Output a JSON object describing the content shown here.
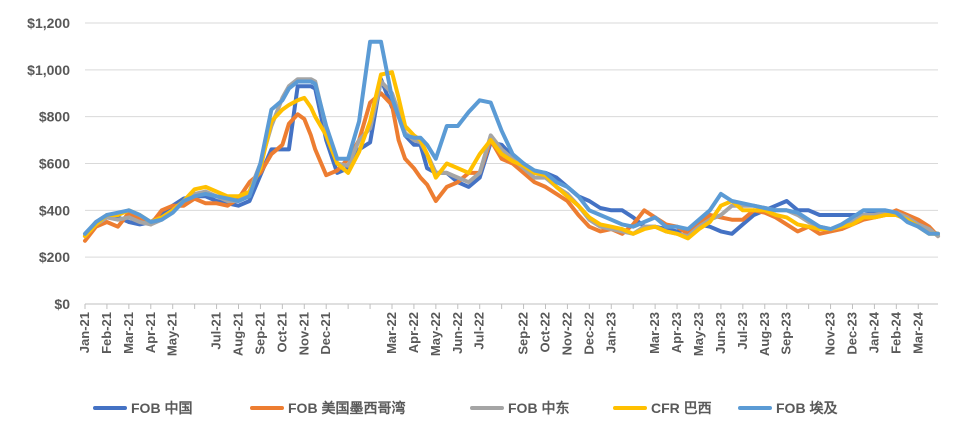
{
  "chart_data": {
    "type": "line",
    "title": "",
    "xlabel": "",
    "ylabel": "",
    "ylim": [
      0,
      1200
    ],
    "y_ticks": [
      "$0",
      "$200",
      "$400",
      "$600",
      "$800",
      "$1,000",
      "$1,200"
    ],
    "y_tick_values": [
      0,
      200,
      400,
      600,
      800,
      1000,
      1200
    ],
    "grid": "horizontal",
    "legend_position": "bottom",
    "x_tick_labels": [
      "Jan-21",
      "Feb-21",
      "Mar-21",
      "Apr-21",
      "May-21",
      "Jul-21",
      "Aug-21",
      "Sep-21",
      "Oct-21",
      "Nov-21",
      "Dec-21",
      "Mar-22",
      "Apr-22",
      "May-22",
      "Jun-22",
      "Jul-22",
      "Sep-22",
      "Oct-22",
      "Nov-22",
      "Dec-22",
      "Jan-23",
      "Mar-23",
      "Apr-23",
      "May-23",
      "Jun-23",
      "Jul-23",
      "Aug-23",
      "Sep-23",
      "Nov-23",
      "Dec-23",
      "Jan-24",
      "Feb-24",
      "Mar-24"
    ],
    "x_tick_months": [
      0,
      1,
      2,
      3,
      4,
      6,
      7,
      8,
      9,
      10,
      11,
      14,
      15,
      16,
      17,
      18,
      20,
      21,
      22,
      23,
      24,
      26,
      27,
      28,
      29,
      30,
      31,
      32,
      34,
      35,
      36,
      37,
      38
    ],
    "x_range_months": [
      0,
      38.9
    ],
    "series": [
      {
        "name": "FOB 中国",
        "color": "#4472C4",
        "x": [
          0,
          0.5,
          1,
          1.5,
          2,
          2.5,
          3,
          3.5,
          4,
          4.5,
          5,
          5.5,
          6,
          6.5,
          7,
          7.5,
          8,
          8.5,
          9,
          9.3,
          9.7,
          10,
          10.3,
          10.5,
          11,
          11.5,
          12,
          12.5,
          13,
          13.5,
          14,
          14.3,
          14.6,
          15,
          15.3,
          15.6,
          16,
          16.5,
          17,
          17.5,
          18,
          18.5,
          19,
          19.5,
          20,
          20.5,
          21,
          21.5,
          22,
          22.5,
          23,
          23.5,
          24,
          24.5,
          25,
          25.5,
          26,
          26.5,
          27,
          27.5,
          28,
          28.5,
          29,
          29.5,
          30,
          30.5,
          31,
          31.5,
          32,
          32.5,
          33,
          33.5,
          34,
          34.5,
          35,
          35.5,
          36,
          36.5,
          37,
          37.5,
          38,
          38.5,
          38.9
        ],
        "y": [
          290,
          350,
          380,
          370,
          350,
          340,
          350,
          380,
          420,
          450,
          460,
          460,
          440,
          430,
          420,
          440,
          550,
          660,
          660,
          660,
          930,
          930,
          930,
          920,
          700,
          560,
          580,
          660,
          690,
          960,
          840,
          830,
          720,
          680,
          680,
          580,
          560,
          560,
          520,
          500,
          540,
          690,
          680,
          630,
          600,
          560,
          560,
          540,
          500,
          460,
          440,
          410,
          400,
          400,
          370,
          330,
          330,
          320,
          310,
          320,
          340,
          330,
          310,
          300,
          340,
          380,
          400,
          420,
          440,
          400,
          400,
          380,
          380,
          380,
          380,
          380,
          390,
          380,
          380,
          370,
          350,
          310,
          300
        ]
      },
      {
        "name": "FOB 美国墨西哥湾",
        "color": "#ED7D31",
        "x": [
          0,
          0.5,
          1,
          1.5,
          2,
          2.5,
          3,
          3.5,
          4,
          4.5,
          5,
          5.5,
          6,
          6.5,
          7,
          7.5,
          8,
          8.5,
          9,
          9.3,
          9.7,
          10,
          10.3,
          10.5,
          11,
          11.5,
          12,
          12.5,
          13,
          13.5,
          14,
          14.3,
          14.6,
          15,
          15.3,
          15.6,
          16,
          16.5,
          17,
          17.5,
          18,
          18.5,
          19,
          19.5,
          20,
          20.5,
          21,
          21.5,
          22,
          22.5,
          23,
          23.5,
          24,
          24.5,
          25,
          25.5,
          26,
          26.5,
          27,
          27.5,
          28,
          28.5,
          29,
          29.5,
          30,
          30.5,
          31,
          31.5,
          32,
          32.5,
          33,
          33.5,
          34,
          34.5,
          35,
          35.5,
          36,
          36.5,
          37,
          37.5,
          38,
          38.5,
          38.9
        ],
        "y": [
          270,
          330,
          350,
          330,
          390,
          360,
          340,
          400,
          420,
          420,
          450,
          430,
          430,
          420,
          450,
          520,
          560,
          640,
          680,
          770,
          810,
          790,
          720,
          660,
          550,
          570,
          620,
          700,
          860,
          900,
          850,
          700,
          620,
          580,
          540,
          510,
          440,
          500,
          520,
          560,
          560,
          700,
          620,
          600,
          560,
          520,
          500,
          470,
          440,
          380,
          330,
          310,
          320,
          300,
          340,
          400,
          370,
          340,
          330,
          300,
          340,
          380,
          370,
          360,
          360,
          400,
          390,
          370,
          340,
          310,
          330,
          300,
          310,
          320,
          340,
          360,
          370,
          380,
          400,
          380,
          360,
          330,
          290
        ]
      },
      {
        "name": "FOB 中东",
        "color": "#A5A5A5",
        "x": [
          0,
          0.5,
          1,
          1.5,
          2,
          2.5,
          3,
          3.5,
          4,
          4.5,
          5,
          5.5,
          6,
          6.5,
          7,
          7.5,
          8,
          8.5,
          9,
          9.3,
          9.7,
          10,
          10.3,
          10.5,
          11,
          11.5,
          12,
          12.5,
          13,
          13.5,
          14,
          14.3,
          14.6,
          15,
          15.3,
          15.6,
          16,
          16.5,
          17,
          17.5,
          18,
          18.5,
          19,
          19.5,
          20,
          20.5,
          21,
          21.5,
          22,
          22.5,
          23,
          23.5,
          24,
          24.5,
          25,
          25.5,
          26,
          26.5,
          27,
          27.5,
          28,
          28.5,
          29,
          29.5,
          30,
          30.5,
          31,
          31.5,
          32,
          32.5,
          33,
          33.5,
          34,
          34.5,
          35,
          35.5,
          36,
          36.5,
          37,
          37.5,
          38,
          38.5,
          38.9
        ],
        "y": [
          290,
          340,
          370,
          360,
          370,
          350,
          340,
          360,
          400,
          440,
          470,
          480,
          460,
          440,
          440,
          480,
          600,
          760,
          880,
          930,
          960,
          960,
          960,
          950,
          750,
          600,
          590,
          700,
          750,
          950,
          900,
          820,
          730,
          700,
          690,
          640,
          560,
          560,
          540,
          520,
          560,
          720,
          660,
          620,
          580,
          540,
          540,
          500,
          470,
          420,
          360,
          330,
          320,
          310,
          300,
          330,
          330,
          310,
          300,
          290,
          330,
          360,
          380,
          420,
          420,
          420,
          410,
          400,
          400,
          380,
          350,
          330,
          320,
          330,
          350,
          380,
          380,
          390,
          390,
          370,
          340,
          320,
          290
        ]
      },
      {
        "name": "CFR 巴西",
        "color": "#FFC000",
        "x": [
          0,
          0.5,
          1,
          1.5,
          2,
          2.5,
          3,
          3.5,
          4,
          4.5,
          5,
          5.5,
          6,
          6.5,
          7,
          7.5,
          8,
          8.5,
          9,
          9.3,
          9.7,
          10,
          10.3,
          10.5,
          11,
          11.5,
          12,
          12.5,
          13,
          13.5,
          14,
          14.3,
          14.6,
          15,
          15.3,
          15.6,
          16,
          16.5,
          17,
          17.5,
          18,
          18.5,
          19,
          19.5,
          20,
          20.5,
          21,
          21.5,
          22,
          22.5,
          23,
          23.5,
          24,
          24.5,
          25,
          25.5,
          26,
          26.5,
          27,
          27.5,
          28,
          28.5,
          29,
          29.5,
          30,
          30.5,
          31,
          31.5,
          32,
          32.5,
          33,
          33.5,
          34,
          34.5,
          35,
          35.5,
          36,
          36.5,
          37,
          37.5,
          38,
          38.5,
          38.9
        ],
        "y": [
          290,
          340,
          380,
          380,
          400,
          380,
          350,
          370,
          400,
          440,
          490,
          500,
          480,
          460,
          460,
          480,
          580,
          780,
          830,
          850,
          870,
          880,
          840,
          800,
          720,
          600,
          560,
          650,
          780,
          980,
          990,
          880,
          760,
          720,
          700,
          640,
          540,
          600,
          580,
          560,
          640,
          700,
          640,
          610,
          590,
          560,
          550,
          500,
          460,
          420,
          370,
          340,
          330,
          320,
          300,
          320,
          330,
          310,
          300,
          280,
          320,
          350,
          420,
          440,
          400,
          400,
          400,
          380,
          370,
          340,
          330,
          320,
          320,
          330,
          340,
          370,
          370,
          380,
          380,
          360,
          330,
          300,
          300
        ]
      },
      {
        "name": "FOB 埃及",
        "color": "#5B9BD5",
        "x": [
          0,
          0.5,
          1,
          1.5,
          2,
          2.5,
          3,
          3.5,
          4,
          4.5,
          5,
          5.5,
          6,
          6.5,
          7,
          7.5,
          8,
          8.5,
          9,
          9.3,
          9.7,
          10,
          10.3,
          10.5,
          11,
          11.5,
          12,
          12.5,
          13,
          13.5,
          14,
          14.3,
          14.6,
          15,
          15.3,
          15.6,
          16,
          16.5,
          17,
          17.5,
          18,
          18.5,
          19,
          19.5,
          20,
          20.5,
          21,
          21.5,
          22,
          22.5,
          23,
          23.5,
          24,
          24.5,
          25,
          25.5,
          26,
          26.5,
          27,
          27.5,
          28,
          28.5,
          29,
          29.5,
          30,
          30.5,
          31,
          31.5,
          32,
          32.5,
          33,
          33.5,
          34,
          34.5,
          35,
          35.5,
          36,
          36.5,
          37,
          37.5,
          38,
          38.5,
          38.9
        ],
        "y": [
          300,
          350,
          380,
          390,
          400,
          380,
          350,
          360,
          390,
          440,
          460,
          470,
          460,
          450,
          440,
          460,
          600,
          830,
          870,
          920,
          950,
          950,
          950,
          940,
          760,
          620,
          620,
          780,
          1120,
          1120,
          880,
          800,
          720,
          710,
          710,
          680,
          620,
          760,
          760,
          820,
          870,
          860,
          740,
          640,
          600,
          570,
          560,
          520,
          500,
          460,
          400,
          380,
          360,
          340,
          330,
          350,
          370,
          330,
          330,
          320,
          360,
          400,
          470,
          440,
          430,
          420,
          410,
          400,
          400,
          390,
          360,
          330,
          320,
          340,
          370,
          400,
          400,
          400,
          390,
          350,
          330,
          300,
          300
        ]
      }
    ]
  }
}
